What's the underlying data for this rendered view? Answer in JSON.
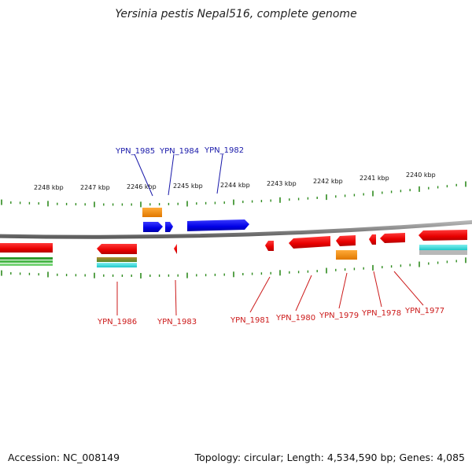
{
  "title": "Yersinia pestis Nepal516, complete genome",
  "footer": {
    "accession": "Accession: NC_008149",
    "summary": "Topology: circular; Length: 4,534,590 bp; Genes: 4,085"
  },
  "colors": {
    "backbone": "#8c8c8c",
    "ticks": "#2e8b1e",
    "forward_gene": "#1010ee",
    "reverse_gene": "#ee1010",
    "forward_label": "#1a1aaa",
    "reverse_label": "#cc1a1a",
    "orange_feature": "#ff8c00",
    "cyan_feature": "#33dddd",
    "olive_feature": "#7a7a2a",
    "green_feature": "#33aa33"
  },
  "scale_labels": [
    "2248 kbp",
    "2247 kbp",
    "2246 kbp",
    "2245 kbp",
    "2244 kbp",
    "2243 kbp",
    "2242 kbp",
    "2241 kbp",
    "2240 kbp"
  ],
  "forward_genes": [
    "YPN_1985",
    "YPN_1984",
    "YPN_1982"
  ],
  "reverse_genes": [
    "YPN_1986",
    "YPN_1983",
    "YPN_1981",
    "YPN_1980",
    "YPN_1979",
    "YPN_1978",
    "YPN_1977"
  ]
}
